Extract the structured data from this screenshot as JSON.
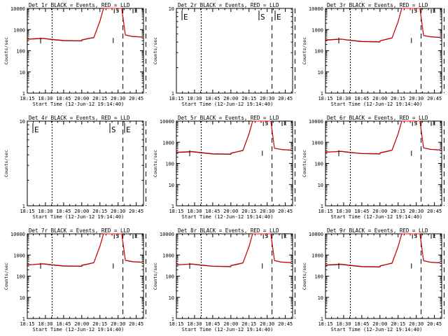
{
  "figure": {
    "x_tick_labels": [
      "18:15",
      "18:30",
      "18:45",
      "20:00",
      "20:15",
      "20:30",
      "20:45"
    ],
    "y_tick_labels": [
      "1",
      "10",
      "100",
      "1000",
      "10000"
    ],
    "xlabel": "Start Time (12-Jun-12 19:14:40)",
    "ylabel": "Counts/sec"
  },
  "chart_data": [
    {
      "type": "line",
      "title": "Det 1r BLACK = Events, RED = LLD",
      "xlabel": "Start Time (12-Jun-12 19:14:40)",
      "ylabel": "Counts/sec",
      "y_scale": "log",
      "ylim": [
        1,
        10000
      ],
      "has_data": true,
      "x_ticks": [
        "18:15",
        "18:30",
        "18:45",
        "20:00",
        "20:15",
        "20:30",
        "20:45"
      ],
      "markers": [
        {
          "label": "S"
        },
        {
          "label": "E"
        }
      ],
      "series": [
        {
          "color": "#000000",
          "x": [
            "18:15",
            "18:20",
            "18:28",
            "18:35",
            "18:45",
            "19:00",
            "20:00",
            "20:05",
            "20:10",
            "20:15",
            "20:18",
            "20:20",
            "20:23",
            "20:27",
            "20:33",
            "20:36",
            "20:42",
            "20:50"
          ],
          "values": [
            350,
            360,
            380,
            340,
            300,
            290,
            320,
            370,
            420,
            2500,
            10000,
            10000,
            10000,
            10000,
            10000,
            550,
            470,
            440
          ]
        },
        {
          "color": "#ff0000",
          "x": [
            "18:15",
            "18:20",
            "18:28",
            "18:35",
            "18:45",
            "19:00",
            "20:00",
            "20:05",
            "20:10",
            "20:15",
            "20:18",
            "20:20",
            "20:23",
            "20:27",
            "20:33",
            "20:36",
            "20:42",
            "20:50"
          ],
          "values": [
            360,
            370,
            390,
            350,
            310,
            300,
            330,
            380,
            430,
            2600,
            10000,
            10000,
            10000,
            10000,
            10000,
            560,
            480,
            450
          ]
        }
      ]
    },
    {
      "type": "line",
      "title": "Det 2r BLACK = Events, RED = LLD",
      "xlabel": "Start Time (12-Jun-12 19:14:40)",
      "ylabel": "Counts/sec",
      "y_scale": "log",
      "ylim": [
        1,
        10
      ],
      "has_data": false,
      "x_ticks": [
        "18:15",
        "18:30",
        "18:45",
        "20:00",
        "20:15",
        "20:30",
        "20:45"
      ],
      "markers": [
        {
          "label": "E"
        },
        {
          "label": "S"
        },
        {
          "label": "E"
        }
      ],
      "series": []
    },
    {
      "type": "line",
      "title": "Det 3r BLACK = Events, RED = LLD",
      "xlabel": "Start Time (12-Jun-12 19:14:40)",
      "ylabel": "Counts/sec",
      "y_scale": "log",
      "ylim": [
        1,
        10000
      ],
      "has_data": true,
      "x_ticks": [
        "18:15",
        "18:30",
        "18:45",
        "20:00",
        "20:15",
        "20:30",
        "20:45"
      ],
      "markers": [
        {
          "label": "S"
        },
        {
          "label": "E"
        }
      ],
      "series": [
        {
          "color": "#000000",
          "x": [
            "18:15",
            "18:20",
            "18:28",
            "18:35",
            "18:45",
            "19:00",
            "20:00",
            "20:05",
            "20:10",
            "20:15",
            "20:18",
            "20:20",
            "20:23",
            "20:27",
            "20:33",
            "20:36",
            "20:42",
            "20:50"
          ],
          "values": [
            320,
            330,
            350,
            310,
            270,
            260,
            290,
            340,
            400,
            2400,
            10000,
            10000,
            10000,
            10000,
            10000,
            520,
            450,
            420
          ]
        },
        {
          "color": "#ff0000",
          "x": [
            "18:15",
            "18:20",
            "18:28",
            "18:35",
            "18:45",
            "19:00",
            "20:00",
            "20:05",
            "20:10",
            "20:15",
            "20:18",
            "20:20",
            "20:23",
            "20:27",
            "20:33",
            "20:36",
            "20:42",
            "20:50"
          ],
          "values": [
            330,
            340,
            360,
            320,
            280,
            270,
            300,
            350,
            410,
            2500,
            10000,
            10000,
            10000,
            10000,
            10000,
            530,
            460,
            430
          ]
        }
      ]
    },
    {
      "type": "line",
      "title": "Det 4r BLACK = Events, RED = LLD",
      "xlabel": "Start Time (12-Jun-12 19:14:40)",
      "ylabel": "Counts/sec",
      "y_scale": "log",
      "ylim": [
        1,
        10
      ],
      "has_data": false,
      "x_ticks": [
        "18:15",
        "18:30",
        "18:45",
        "20:00",
        "20:15",
        "20:30",
        "20:45"
      ],
      "markers": [
        {
          "label": "E"
        },
        {
          "label": "S"
        },
        {
          "label": "E"
        }
      ],
      "series": []
    },
    {
      "type": "line",
      "title": "Det 5r BLACK = Events, RED = LLD",
      "xlabel": "Start Time (12-Jun-12 19:14:40)",
      "ylabel": "Counts/sec",
      "y_scale": "log",
      "ylim": [
        1,
        10000
      ],
      "has_data": true,
      "x_ticks": [
        "18:15",
        "18:30",
        "18:45",
        "20:00",
        "20:15",
        "20:30",
        "20:45"
      ],
      "markers": [
        {
          "label": "S"
        },
        {
          "label": "E"
        }
      ],
      "series": [
        {
          "color": "#000000",
          "x": [
            "18:15",
            "18:20",
            "18:28",
            "18:35",
            "18:45",
            "19:00",
            "20:00",
            "20:05",
            "20:10",
            "20:15",
            "20:18",
            "20:20",
            "20:23",
            "20:27",
            "20:33",
            "20:36",
            "20:42",
            "20:50"
          ],
          "values": [
            330,
            340,
            360,
            320,
            280,
            270,
            300,
            350,
            410,
            2500,
            10000,
            10000,
            10000,
            10000,
            10000,
            520,
            450,
            420
          ]
        },
        {
          "color": "#ff0000",
          "x": [
            "18:15",
            "18:20",
            "18:28",
            "18:35",
            "18:45",
            "19:00",
            "20:00",
            "20:05",
            "20:10",
            "20:15",
            "20:18",
            "20:20",
            "20:23",
            "20:27",
            "20:33",
            "20:36",
            "20:42",
            "20:50"
          ],
          "values": [
            340,
            350,
            370,
            330,
            290,
            280,
            310,
            360,
            420,
            2600,
            10000,
            10000,
            10000,
            10000,
            10000,
            530,
            460,
            430
          ]
        }
      ]
    },
    {
      "type": "line",
      "title": "Det 6r BLACK = Events, RED = LLD",
      "xlabel": "Start Time (12-Jun-12 19:14:40)",
      "ylabel": "Counts/sec",
      "y_scale": "log",
      "ylim": [
        1,
        10000
      ],
      "has_data": true,
      "x_ticks": [
        "18:15",
        "18:30",
        "18:45",
        "20:00",
        "20:15",
        "20:30",
        "20:45"
      ],
      "markers": [
        {
          "label": "S"
        },
        {
          "label": "E"
        }
      ],
      "series": [
        {
          "color": "#000000",
          "x": [
            "18:15",
            "18:20",
            "18:28",
            "18:35",
            "18:45",
            "19:00",
            "20:00",
            "20:05",
            "20:10",
            "20:15",
            "20:18",
            "20:20",
            "20:23",
            "20:27",
            "20:33",
            "20:36",
            "20:42",
            "20:50"
          ],
          "values": [
            340,
            350,
            370,
            330,
            290,
            280,
            310,
            360,
            420,
            2500,
            10000,
            10000,
            10000,
            10000,
            10000,
            540,
            460,
            430
          ]
        },
        {
          "color": "#ff0000",
          "x": [
            "18:15",
            "18:20",
            "18:28",
            "18:35",
            "18:45",
            "19:00",
            "20:00",
            "20:05",
            "20:10",
            "20:15",
            "20:18",
            "20:20",
            "20:23",
            "20:27",
            "20:33",
            "20:36",
            "20:42",
            "20:50"
          ],
          "values": [
            350,
            360,
            380,
            340,
            300,
            290,
            320,
            370,
            430,
            2600,
            10000,
            10000,
            10000,
            10000,
            10000,
            550,
            470,
            440
          ]
        }
      ]
    },
    {
      "type": "line",
      "title": "Det 7r BLACK = Events, RED = LLD",
      "xlabel": "Start Time (12-Jun-12 19:14:40)",
      "ylabel": "Counts/sec",
      "y_scale": "log",
      "ylim": [
        1,
        10000
      ],
      "has_data": true,
      "x_ticks": [
        "18:15",
        "18:30",
        "18:45",
        "20:00",
        "20:15",
        "20:30",
        "20:45"
      ],
      "markers": [
        {
          "label": "S"
        },
        {
          "label": "E"
        }
      ],
      "series": [
        {
          "color": "#000000",
          "x": [
            "18:15",
            "18:20",
            "18:28",
            "18:35",
            "18:45",
            "19:00",
            "20:00",
            "20:05",
            "20:10",
            "20:15",
            "20:18",
            "20:20",
            "20:23",
            "20:27",
            "20:33",
            "20:36",
            "20:42",
            "20:50"
          ],
          "values": [
            340,
            350,
            380,
            340,
            300,
            290,
            320,
            370,
            430,
            2600,
            10000,
            10000,
            10000,
            10000,
            10000,
            560,
            480,
            450
          ]
        },
        {
          "color": "#ff0000",
          "x": [
            "18:15",
            "18:20",
            "18:28",
            "18:35",
            "18:45",
            "19:00",
            "20:00",
            "20:05",
            "20:10",
            "20:15",
            "20:18",
            "20:20",
            "20:23",
            "20:27",
            "20:33",
            "20:36",
            "20:42",
            "20:50"
          ],
          "values": [
            350,
            360,
            390,
            350,
            310,
            300,
            330,
            380,
            440,
            2700,
            10000,
            10000,
            10000,
            10000,
            10000,
            570,
            490,
            460
          ]
        }
      ]
    },
    {
      "type": "line",
      "title": "Det 8r BLACK = Events, RED = LLD",
      "xlabel": "Start Time (12-Jun-12 19:14:40)",
      "ylabel": "Counts/sec",
      "y_scale": "log",
      "ylim": [
        1,
        10000
      ],
      "has_data": true,
      "x_ticks": [
        "18:15",
        "18:30",
        "18:45",
        "20:00",
        "20:15",
        "20:30",
        "20:45"
      ],
      "markers": [
        {
          "label": "S"
        },
        {
          "label": "E"
        }
      ],
      "series": [
        {
          "color": "#000000",
          "x": [
            "18:15",
            "18:20",
            "18:28",
            "18:35",
            "18:45",
            "19:00",
            "20:00",
            "20:05",
            "20:10",
            "20:15",
            "20:18",
            "20:20",
            "20:23",
            "20:27",
            "20:33",
            "20:36",
            "20:42",
            "20:50"
          ],
          "values": [
            340,
            350,
            370,
            330,
            290,
            280,
            310,
            360,
            420,
            2500,
            10000,
            10000,
            10000,
            10000,
            10000,
            540,
            460,
            430
          ]
        },
        {
          "color": "#ff0000",
          "x": [
            "18:15",
            "18:20",
            "18:28",
            "18:35",
            "18:45",
            "19:00",
            "20:00",
            "20:05",
            "20:10",
            "20:15",
            "20:18",
            "20:20",
            "20:23",
            "20:27",
            "20:33",
            "20:36",
            "20:42",
            "20:50"
          ],
          "values": [
            350,
            360,
            380,
            340,
            300,
            290,
            320,
            370,
            430,
            2600,
            10000,
            10000,
            10000,
            10000,
            10000,
            550,
            470,
            440
          ]
        }
      ]
    },
    {
      "type": "line",
      "title": "Det 9r BLACK = Events, RED = LLD",
      "xlabel": "Start Time (12-Jun-12 19:14:40)",
      "ylabel": "Counts/sec",
      "y_scale": "log",
      "ylim": [
        1,
        10000
      ],
      "has_data": true,
      "x_ticks": [
        "18:15",
        "18:30",
        "18:45",
        "20:00",
        "20:15",
        "20:30",
        "20:45"
      ],
      "markers": [
        {
          "label": "S"
        },
        {
          "label": "E"
        }
      ],
      "series": [
        {
          "color": "#000000",
          "x": [
            "18:15",
            "18:20",
            "18:28",
            "18:35",
            "18:45",
            "19:00",
            "20:00",
            "20:05",
            "20:10",
            "20:15",
            "20:18",
            "20:20",
            "20:23",
            "20:27",
            "20:33",
            "20:36",
            "20:42",
            "20:50"
          ],
          "values": [
            330,
            340,
            360,
            320,
            280,
            270,
            300,
            350,
            410,
            2500,
            10000,
            10000,
            10000,
            10000,
            10000,
            530,
            450,
            420
          ]
        },
        {
          "color": "#ff0000",
          "x": [
            "18:15",
            "18:20",
            "18:28",
            "18:35",
            "18:45",
            "19:00",
            "20:00",
            "20:05",
            "20:10",
            "20:15",
            "20:18",
            "20:20",
            "20:23",
            "20:27",
            "20:33",
            "20:36",
            "20:42",
            "20:50"
          ],
          "values": [
            340,
            350,
            370,
            330,
            290,
            280,
            310,
            360,
            420,
            2600,
            10000,
            10000,
            10000,
            10000,
            10000,
            540,
            460,
            430
          ]
        }
      ]
    }
  ]
}
